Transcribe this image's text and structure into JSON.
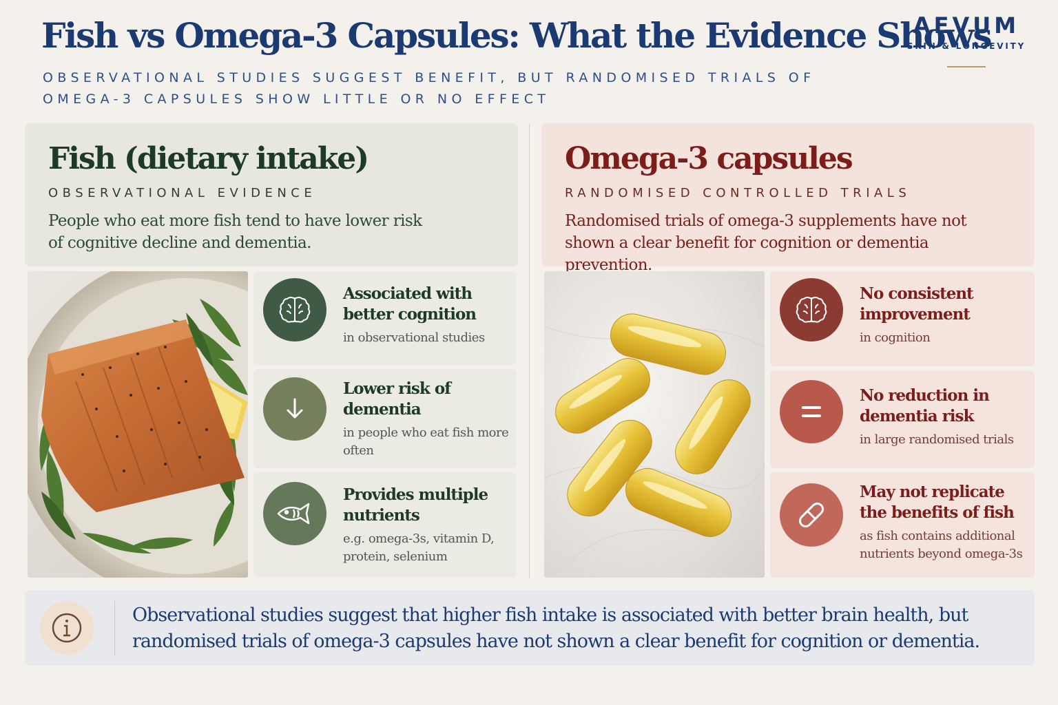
{
  "header": {
    "title": "Fish vs Omega-3 Capsules: What the Evidence Shows",
    "subtitle": "OBSERVATIONAL STUDIES SUGGEST BENEFIT, BUT RANDOMISED TRIALS OF OMEGA-3 CAPSULES SHOW LITTLE OR NO EFFECT"
  },
  "brand": {
    "name": "AEVUM",
    "tagline": "SKIN & LONGEVITY"
  },
  "left": {
    "title": "Fish (dietary intake)",
    "label": "OBSERVATIONAL EVIDENCE",
    "description": "People who eat more fish tend to have lower risk of cognitive decline and dementia.",
    "items": [
      {
        "icon": "brain-icon",
        "title": "Associated with better cognition",
        "sub": "in observational studies"
      },
      {
        "icon": "arrow-down-icon",
        "title": "Lower risk of dementia",
        "sub": "in people who eat fish more often"
      },
      {
        "icon": "fish-icon",
        "title": "Provides multiple nutrients",
        "sub": "e.g. omega-3s, vitamin D, protein, selenium"
      }
    ]
  },
  "right": {
    "title": "Omega-3 capsules",
    "label": "RANDOMISED CONTROLLED TRIALS",
    "description": "Randomised trials of omega-3 supplements have not shown a clear benefit for cognition or dementia prevention.",
    "items": [
      {
        "icon": "brain-icon",
        "title": "No consistent improvement",
        "sub": "in cognition"
      },
      {
        "icon": "equals-icon",
        "title": "No reduction in dementia risk",
        "sub": "in large randomised trials"
      },
      {
        "icon": "capsule-icon",
        "title": "May not replicate the benefits of fish",
        "sub": "as fish contains additional nutrients beyond omega-3s"
      }
    ]
  },
  "footer": {
    "icon": "info-icon",
    "text": "Observational studies suggest that higher fish intake is associated with better brain health, but randomised trials of omega-3 capsules have not shown a clear benefit for cognition or dementia."
  },
  "colors": {
    "navy": "#1b3a72",
    "green_dark": "#3f5a45",
    "green_mid": "#747f5c",
    "green_fish": "#66785a",
    "red_dark": "#8b3b32",
    "red_mid": "#b8594b",
    "red_light": "#c2685a"
  }
}
